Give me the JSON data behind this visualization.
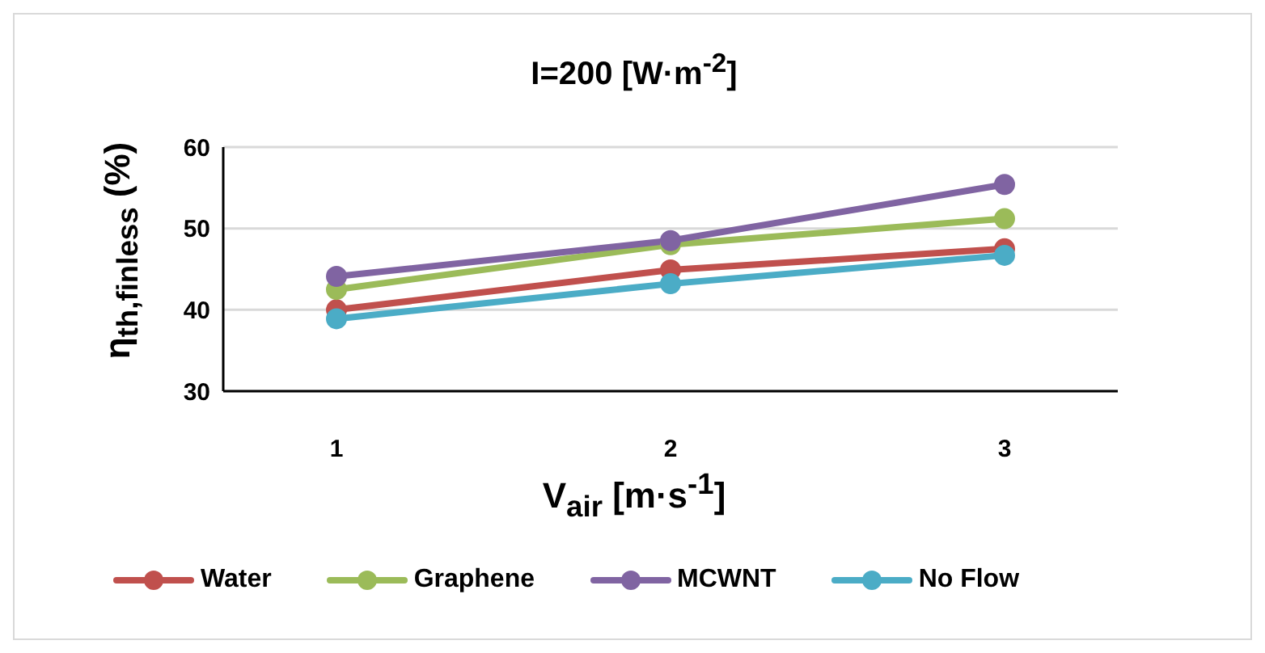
{
  "chart_data": {
    "type": "line",
    "title": "I=200 [W·m$^{-2}$]",
    "xlabel": "V$_{air}$ [m·s$^{-1}$]",
    "ylabel": "η$_{th,finless}$ (%)",
    "categories": [
      "1",
      "2",
      "3"
    ],
    "series": [
      {
        "name": "Water",
        "color": "#c0504d",
        "values": [
          40.0,
          44.9,
          47.5
        ]
      },
      {
        "name": "Graphene",
        "color": "#9bbb59",
        "values": [
          42.5,
          48.0,
          51.2
        ]
      },
      {
        "name": "MCWNT",
        "color": "#8064a2",
        "values": [
          44.1,
          48.5,
          55.4
        ]
      },
      {
        "name": "No Flow",
        "color": "#4bacc6",
        "values": [
          38.9,
          43.2,
          46.7
        ]
      }
    ],
    "ylim": [
      30,
      60
    ],
    "yticks": [
      30,
      40,
      50,
      60
    ],
    "grid": "y",
    "legend": "bottom",
    "marker": "circle",
    "line_style": "solid"
  }
}
